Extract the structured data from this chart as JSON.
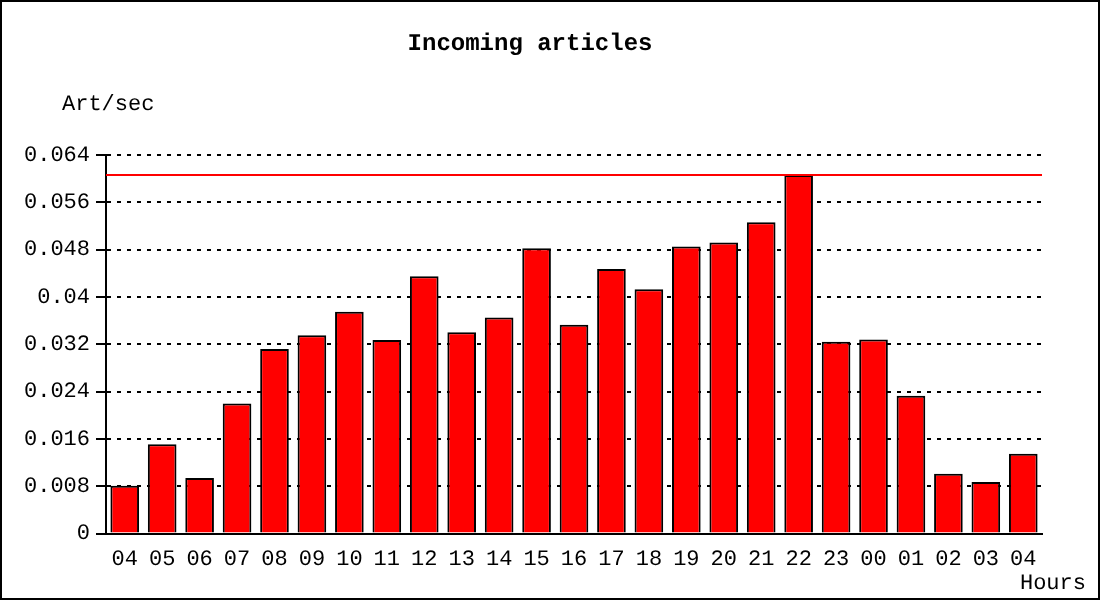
{
  "chart_data": {
    "type": "bar",
    "title": "Incoming articles",
    "xlabel": "Hours",
    "ylabel": "Art/sec",
    "categories": [
      "04",
      "05",
      "06",
      "07",
      "08",
      "09",
      "10",
      "11",
      "12",
      "13",
      "14",
      "15",
      "16",
      "17",
      "18",
      "19",
      "20",
      "21",
      "22",
      "23",
      "00",
      "01",
      "02",
      "03",
      "04"
    ],
    "values": [
      0.0081,
      0.0151,
      0.0094,
      0.022,
      0.0312,
      0.0335,
      0.0375,
      0.0327,
      0.0435,
      0.034,
      0.0365,
      0.0482,
      0.0353,
      0.0447,
      0.0413,
      0.0485,
      0.0492,
      0.0526,
      0.0606,
      0.0324,
      0.0328,
      0.0233,
      0.0101,
      0.0087,
      0.0135
    ],
    "color": "#ff0000",
    "ylim": [
      0,
      0.064
    ],
    "yticks": [
      0,
      0.008,
      0.016,
      0.024,
      0.032,
      0.04,
      0.048,
      0.056,
      0.064
    ],
    "grid": "y",
    "line_style": "dotted",
    "ref_lines": [
      {
        "axis": "y",
        "value": 0.0606,
        "color": "#ff0000"
      }
    ]
  }
}
